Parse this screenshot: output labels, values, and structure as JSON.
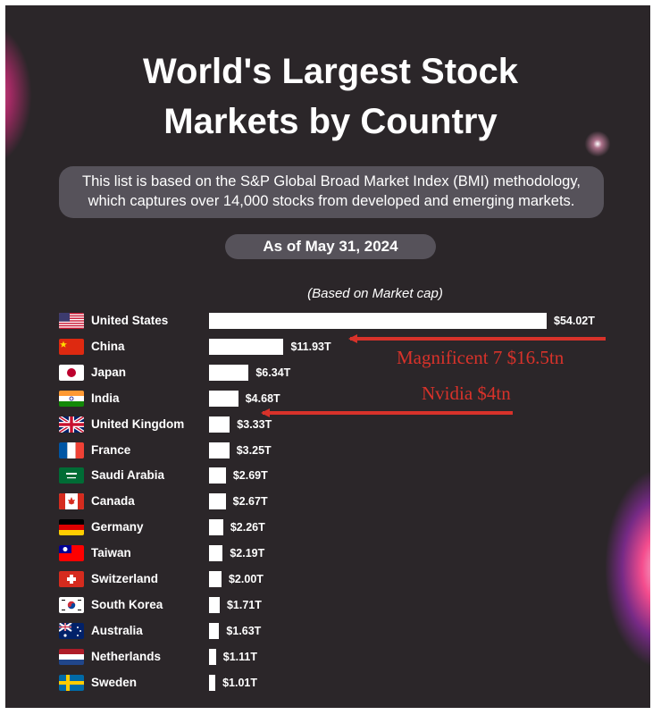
{
  "header": {
    "title_lines": [
      "World's Largest Stock",
      "Markets by Country"
    ],
    "description_lines": [
      "This list is based on the S&P Global Broad Market Index (BMI) methodology,",
      "which captures over 14,000 stocks from developed and emerging markets."
    ],
    "date": "As of May 31, 2024",
    "basis": "(Based on Market cap)"
  },
  "chart_data": {
    "type": "bar",
    "orientation": "horizontal",
    "unit": "trillion USD",
    "xlim": [
      0,
      54.02
    ],
    "categories": [
      "United States",
      "China",
      "Japan",
      "India",
      "United Kingdom",
      "France",
      "Saudi Arabia",
      "Canada",
      "Germany",
      "Taiwan",
      "Switzerland",
      "South Korea",
      "Australia",
      "Netherlands",
      "Sweden"
    ],
    "values": [
      54.02,
      11.93,
      6.34,
      4.68,
      3.33,
      3.25,
      2.69,
      2.67,
      2.26,
      2.19,
      2.0,
      1.71,
      1.63,
      1.11,
      1.01
    ],
    "value_labels": [
      "$54.02T",
      "$11.93T",
      "$6.34T",
      "$4.68T",
      "$3.33T",
      "$3.25T",
      "$2.69T",
      "$2.67T",
      "$2.26T",
      "$2.19T",
      "$2.00T",
      "$1.71T",
      "$1.63T",
      "$1.11T",
      "$1.01T"
    ],
    "flags": [
      "us",
      "cn",
      "jp",
      "in",
      "uk",
      "fr",
      "sa",
      "ca",
      "de",
      "tw",
      "ch",
      "kr",
      "au",
      "nl",
      "se"
    ],
    "bar_color": "#ffffff",
    "background_color": "#2b2629",
    "annotations": [
      {
        "text": "Magnificent 7 $16.5tn",
        "points_to": "China",
        "color": "#d8322a"
      },
      {
        "text": "Nvidia $4tn",
        "points_to": "India",
        "color": "#d8322a"
      }
    ]
  }
}
